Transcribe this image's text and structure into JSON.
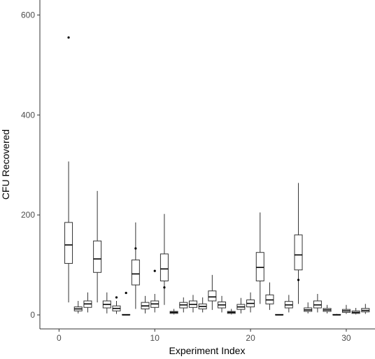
{
  "chart_data": {
    "type": "boxplot",
    "xlabel": "Experiment Index",
    "ylabel": "CFU Recovered",
    "xlim": [
      -2,
      33
    ],
    "ylim": [
      -28,
      630
    ],
    "x_ticks": [
      0,
      10,
      20,
      30
    ],
    "y_ticks": [
      0,
      200,
      400,
      600
    ],
    "x_tick_labels": [
      "0",
      "10",
      "20",
      "30"
    ],
    "y_tick_labels": [
      "0",
      "200",
      "400",
      "600"
    ],
    "grid": false,
    "colors": {
      "box_fill": "#ffffff",
      "box_stroke": "#333333",
      "axis": "#333333",
      "text": "#4d4d4d"
    },
    "boxes": [
      {
        "x": 1,
        "whisker_low": 25,
        "q1": 103,
        "median": 140,
        "q3": 185,
        "whisker_high": 307,
        "outliers": [
          555
        ]
      },
      {
        "x": 2,
        "whisker_low": 3,
        "q1": 8,
        "median": 12,
        "q3": 16,
        "whisker_high": 28,
        "outliers": []
      },
      {
        "x": 3,
        "whisker_low": 5,
        "q1": 15,
        "median": 22,
        "q3": 28,
        "whisker_high": 45,
        "outliers": []
      },
      {
        "x": 4,
        "whisker_low": 25,
        "q1": 85,
        "median": 112,
        "q3": 148,
        "whisker_high": 248,
        "outliers": []
      },
      {
        "x": 5,
        "whisker_low": 3,
        "q1": 14,
        "median": 21,
        "q3": 28,
        "whisker_high": 45,
        "outliers": []
      },
      {
        "x": 6,
        "whisker_low": 2,
        "q1": 8,
        "median": 13,
        "q3": 18,
        "whisker_high": 28,
        "outliers": [
          35
        ]
      },
      {
        "x": 7,
        "whisker_low": 0,
        "q1": 0,
        "median": 0,
        "q3": 1,
        "whisker_high": 1,
        "outliers": [
          44
        ]
      },
      {
        "x": 8,
        "whisker_low": 12,
        "q1": 60,
        "median": 82,
        "q3": 110,
        "whisker_high": 185,
        "outliers": [
          133
        ]
      },
      {
        "x": 9,
        "whisker_low": 3,
        "q1": 12,
        "median": 18,
        "q3": 25,
        "whisker_high": 38,
        "outliers": []
      },
      {
        "x": 10,
        "whisker_low": 5,
        "q1": 15,
        "median": 22,
        "q3": 28,
        "whisker_high": 42,
        "outliers": [
          88
        ]
      },
      {
        "x": 11,
        "whisker_low": 20,
        "q1": 68,
        "median": 92,
        "q3": 122,
        "whisker_high": 202,
        "outliers": [
          55
        ]
      },
      {
        "x": 12,
        "whisker_low": 1,
        "q1": 3,
        "median": 5,
        "q3": 7,
        "whisker_high": 12,
        "outliers": []
      },
      {
        "x": 13,
        "whisker_low": 5,
        "q1": 14,
        "median": 20,
        "q3": 25,
        "whisker_high": 35,
        "outliers": []
      },
      {
        "x": 14,
        "whisker_low": 5,
        "q1": 15,
        "median": 21,
        "q3": 28,
        "whisker_high": 40,
        "outliers": []
      },
      {
        "x": 15,
        "whisker_low": 5,
        "q1": 12,
        "median": 17,
        "q3": 22,
        "whisker_high": 35,
        "outliers": []
      },
      {
        "x": 16,
        "whisker_low": 10,
        "q1": 28,
        "median": 36,
        "q3": 48,
        "whisker_high": 80,
        "outliers": []
      },
      {
        "x": 17,
        "whisker_low": 5,
        "q1": 14,
        "median": 20,
        "q3": 26,
        "whisker_high": 38,
        "outliers": []
      },
      {
        "x": 18,
        "whisker_low": 1,
        "q1": 3,
        "median": 5,
        "q3": 7,
        "whisker_high": 12,
        "outliers": []
      },
      {
        "x": 19,
        "whisker_low": 3,
        "q1": 11,
        "median": 16,
        "q3": 21,
        "whisker_high": 34,
        "outliers": []
      },
      {
        "x": 20,
        "whisker_low": 5,
        "q1": 16,
        "median": 23,
        "q3": 30,
        "whisker_high": 45,
        "outliers": []
      },
      {
        "x": 21,
        "whisker_low": 22,
        "q1": 68,
        "median": 95,
        "q3": 125,
        "whisker_high": 205,
        "outliers": []
      },
      {
        "x": 22,
        "whisker_low": 10,
        "q1": 22,
        "median": 30,
        "q3": 40,
        "whisker_high": 65,
        "outliers": []
      },
      {
        "x": 23,
        "whisker_low": 0,
        "q1": 0,
        "median": 0,
        "q3": 1,
        "whisker_high": 1,
        "outliers": []
      },
      {
        "x": 24,
        "whisker_low": 5,
        "q1": 14,
        "median": 20,
        "q3": 27,
        "whisker_high": 40,
        "outliers": []
      },
      {
        "x": 25,
        "whisker_low": 22,
        "q1": 90,
        "median": 120,
        "q3": 160,
        "whisker_high": 264,
        "outliers": [
          70
        ]
      },
      {
        "x": 26,
        "whisker_low": 3,
        "q1": 7,
        "median": 10,
        "q3": 14,
        "whisker_high": 25,
        "outliers": []
      },
      {
        "x": 27,
        "whisker_low": 5,
        "q1": 14,
        "median": 20,
        "q3": 28,
        "whisker_high": 42,
        "outliers": []
      },
      {
        "x": 28,
        "whisker_low": 3,
        "q1": 7,
        "median": 10,
        "q3": 13,
        "whisker_high": 20,
        "outliers": []
      },
      {
        "x": 29,
        "whisker_low": 0,
        "q1": 0,
        "median": 0,
        "q3": 1,
        "whisker_high": 2,
        "outliers": []
      },
      {
        "x": 30,
        "whisker_low": 2,
        "q1": 5,
        "median": 8,
        "q3": 11,
        "whisker_high": 20,
        "outliers": []
      },
      {
        "x": 31,
        "whisker_low": 1,
        "q1": 3,
        "median": 5,
        "q3": 8,
        "whisker_high": 14,
        "outliers": []
      },
      {
        "x": 32,
        "whisker_low": 2,
        "q1": 6,
        "median": 9,
        "q3": 13,
        "whisker_high": 22,
        "outliers": []
      }
    ]
  }
}
